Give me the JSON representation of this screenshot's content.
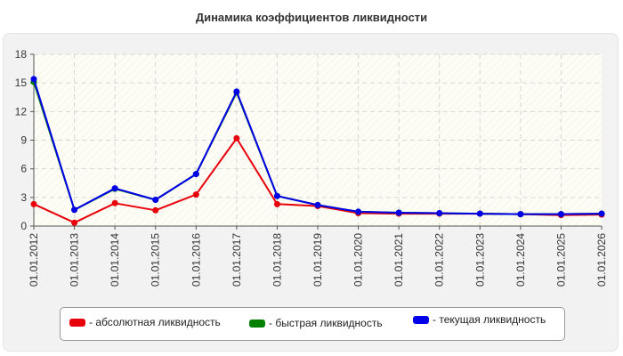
{
  "chart_data": {
    "type": "line",
    "title": "Динамика коэффициентов ликвидности",
    "xlabel": "",
    "ylabel": "",
    "categories": [
      "01.01.2012",
      "01.01.2013",
      "01.01.2014",
      "01.01.2015",
      "01.01.2016",
      "01.01.2017",
      "01.01.2018",
      "01.01.2019",
      "01.01.2020",
      "01.01.2021",
      "01.01.2022",
      "01.01.2023",
      "01.01.2024",
      "01.01.2025",
      "01.01.2026"
    ],
    "yticks": [
      "0",
      "3",
      "6",
      "9",
      "12",
      "15",
      "18"
    ],
    "ylim": [
      0,
      18
    ],
    "grid": true,
    "legend_position": "bottom",
    "series": [
      {
        "name": "- абсолютная ликвидность",
        "color": "#e8000b",
        "values": [
          2.3,
          0.35,
          2.4,
          1.65,
          3.3,
          9.2,
          2.3,
          2.1,
          1.35,
          1.3,
          1.3,
          1.3,
          1.25,
          1.15,
          1.2
        ]
      },
      {
        "name": "- быстрая ликвидность",
        "color": "#008000",
        "values": [
          15.1,
          1.7,
          3.9,
          2.75,
          5.45,
          14.0,
          3.15,
          2.2,
          1.5,
          1.4,
          1.35,
          1.3,
          1.25,
          1.25,
          1.3
        ]
      },
      {
        "name": "- текущая ликвидность",
        "color": "#0000e8",
        "values": [
          15.4,
          1.7,
          3.95,
          2.75,
          5.45,
          14.1,
          3.15,
          2.2,
          1.5,
          1.4,
          1.35,
          1.3,
          1.25,
          1.25,
          1.3
        ]
      }
    ]
  }
}
